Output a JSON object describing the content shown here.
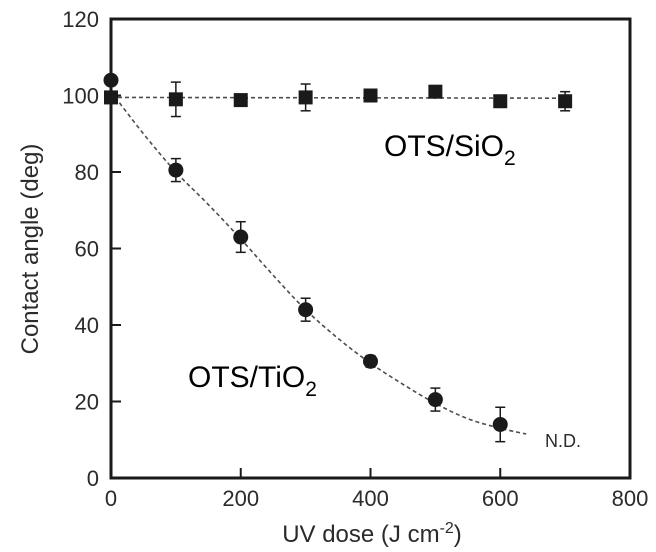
{
  "chart_data": {
    "type": "scatter",
    "title": "",
    "xlabel": "UV dose (J cm",
    "xlabel_sup": "-2",
    "xlabel_end": ")",
    "ylabel": "Contact angle (deg)",
    "xlim": [
      0,
      800
    ],
    "ylim": [
      0,
      120
    ],
    "xticks": [
      0,
      200,
      400,
      600,
      800
    ],
    "yticks": [
      0,
      20,
      40,
      60,
      80,
      100,
      120
    ],
    "grid": false,
    "series": [
      {
        "name_main": "OTS/SiO",
        "name_sub": "2",
        "marker": "square",
        "x": [
          0,
          100,
          200,
          300,
          400,
          500,
          600,
          700
        ],
        "y": [
          99.5,
          99,
          98.8,
          99.5,
          100,
          101,
          98.5,
          98.5
        ],
        "err": [
          1.5,
          4.5,
          0,
          3.5,
          0.5,
          0,
          0.5,
          2.5
        ],
        "fit_x": [
          0,
          700
        ],
        "fit_y": [
          99.5,
          99.3
        ]
      },
      {
        "name_main": "OTS/TiO",
        "name_sub": "2",
        "marker": "circle",
        "x": [
          0,
          100,
          200,
          300,
          400,
          500,
          600
        ],
        "y": [
          104,
          80.5,
          63,
          44,
          30.5,
          20.5,
          14
        ],
        "err": [
          0,
          3,
          4,
          3,
          1.5,
          3,
          4.5
        ],
        "fit_x": [
          0,
          50,
          100,
          150,
          200,
          250,
          300,
          350,
          400,
          450,
          500,
          550,
          600,
          640
        ],
        "fit_y": [
          101,
          90,
          80,
          71.5,
          62.5,
          53,
          44,
          36.5,
          30,
          24.5,
          19.5,
          15.5,
          13,
          11.5
        ]
      }
    ],
    "annotations": [
      {
        "text": "N.D."
      }
    ],
    "colors": {
      "markers": "#1a1a1a",
      "axis": "#1a1a1a",
      "text": "#2b2b2b",
      "fit": "#4d4d4d"
    }
  }
}
